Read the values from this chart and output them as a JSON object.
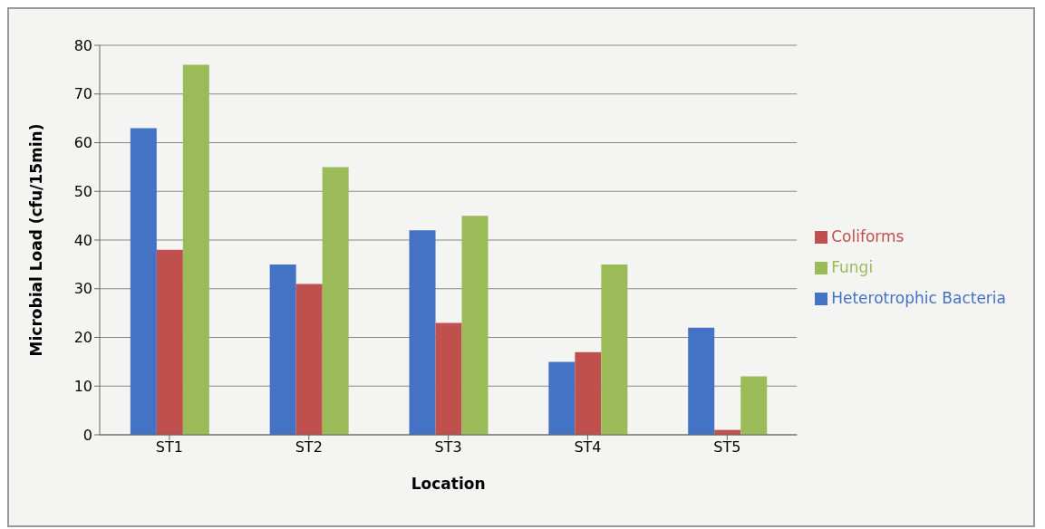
{
  "chart_data": {
    "type": "bar",
    "xlabel": "Location",
    "ylabel": "Microbial Load (cfu/15min)",
    "categories": [
      "ST1",
      "ST2",
      "ST3",
      "ST4",
      "ST5"
    ],
    "series": [
      {
        "name": "Heterotrophic Bacteria",
        "color": "#4472c4",
        "values": [
          63,
          35,
          42,
          15,
          22
        ]
      },
      {
        "name": "Coliforms",
        "color": "#c0504d",
        "values": [
          38,
          31,
          23,
          17,
          1
        ]
      },
      {
        "name": "Fungi",
        "color": "#9bbb59",
        "values": [
          76,
          55,
          45,
          35,
          12
        ]
      }
    ],
    "ylim": [
      0,
      80
    ],
    "yticks": [
      0,
      10,
      20,
      30,
      40,
      50,
      60,
      70,
      80
    ],
    "grid": "y",
    "legend": "right"
  }
}
